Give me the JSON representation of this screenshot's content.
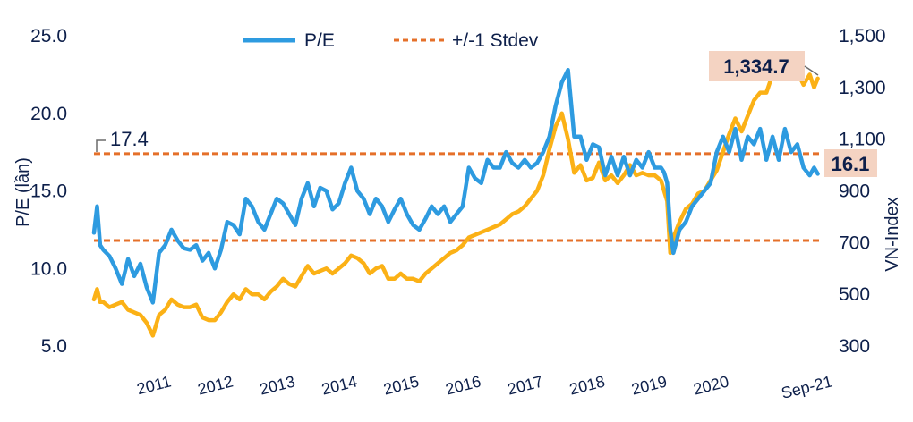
{
  "chart_data": {
    "type": "line",
    "title": "",
    "ylabel": "P/E (lần)",
    "y2label": "VN-Index",
    "ylim": [
      5,
      25
    ],
    "y2lim": [
      300,
      1500
    ],
    "yticks": [
      "5.0",
      "10.0",
      "15.0",
      "20.0",
      "25.0"
    ],
    "y2ticks": [
      "300",
      "500",
      "700",
      "900",
      "1,100",
      "1,300",
      "1,500"
    ],
    "xlim": [
      2010.0,
      2021.7
    ],
    "xtick_labels": [
      "2011",
      "2012",
      "2013",
      "2014",
      "2015",
      "2016",
      "2017",
      "2018",
      "2019",
      "2020",
      "Sep-21"
    ],
    "xtick_positions": [
      2011.0,
      2012.0,
      2013.0,
      2014.0,
      2015.0,
      2016.0,
      2017.0,
      2018.0,
      2019.0,
      2020.0,
      2021.67
    ],
    "legend": [
      "P/E",
      "+/-1 Stdev"
    ],
    "legend_position": "top",
    "reference_lines": [
      {
        "name": "+1 Stdev",
        "value": 17.4,
        "axis": "left"
      },
      {
        "name": "-1 Stdev",
        "value": 11.8,
        "axis": "left"
      }
    ],
    "annotations": {
      "upper_band_label": "17.4",
      "pe_last_label": "16.1",
      "vnindex_last_label": "1,334.7"
    },
    "colors": {
      "pe": "#2e9be0",
      "vnindex": "#fbb116",
      "stdev": "#e5702a",
      "text": "#0d1f4a",
      "callout_bg": "#f4d3c2"
    },
    "series": [
      {
        "name": "P/E",
        "axis": "left",
        "x": [
          2010.0,
          2010.05,
          2010.1,
          2010.15,
          2010.25,
          2010.35,
          2010.45,
          2010.55,
          2010.65,
          2010.75,
          2010.85,
          2010.95,
          2011.05,
          2011.15,
          2011.25,
          2011.35,
          2011.45,
          2011.55,
          2011.65,
          2011.75,
          2011.85,
          2011.95,
          2012.05,
          2012.15,
          2012.25,
          2012.35,
          2012.45,
          2012.55,
          2012.65,
          2012.75,
          2012.85,
          2012.95,
          2013.05,
          2013.15,
          2013.25,
          2013.35,
          2013.45,
          2013.55,
          2013.65,
          2013.75,
          2013.85,
          2013.95,
          2014.05,
          2014.15,
          2014.25,
          2014.35,
          2014.45,
          2014.55,
          2014.65,
          2014.75,
          2014.85,
          2014.95,
          2015.05,
          2015.15,
          2015.25,
          2015.35,
          2015.45,
          2015.55,
          2015.65,
          2015.75,
          2015.85,
          2015.95,
          2016.05,
          2016.15,
          2016.25,
          2016.35,
          2016.45,
          2016.55,
          2016.65,
          2016.75,
          2016.85,
          2016.95,
          2017.05,
          2017.15,
          2017.25,
          2017.35,
          2017.45,
          2017.55,
          2017.65,
          2017.75,
          2017.85,
          2017.95,
          2018.05,
          2018.15,
          2018.25,
          2018.35,
          2018.45,
          2018.55,
          2018.65,
          2018.75,
          2018.85,
          2018.95,
          2019.05,
          2019.15,
          2019.2,
          2019.25,
          2019.3,
          2019.35,
          2019.45,
          2019.55,
          2019.65,
          2019.75,
          2019.85,
          2019.95,
          2020.05,
          2020.15,
          2020.25,
          2020.35,
          2020.45,
          2020.55,
          2020.65,
          2020.75,
          2020.85,
          2020.95,
          2021.05,
          2021.15,
          2021.25,
          2021.35,
          2021.45,
          2021.55,
          2021.62,
          2021.68
        ],
        "values": [
          12.3,
          14.0,
          11.5,
          11.2,
          10.8,
          10.0,
          9.0,
          10.6,
          9.5,
          10.3,
          8.8,
          7.8,
          11.0,
          11.5,
          12.5,
          11.8,
          11.3,
          11.2,
          11.5,
          10.5,
          11.0,
          10.0,
          11.2,
          13.0,
          12.8,
          12.2,
          14.5,
          14.0,
          13.0,
          12.5,
          13.5,
          14.5,
          14.2,
          13.5,
          12.8,
          14.5,
          15.5,
          14.0,
          15.2,
          15.0,
          13.8,
          14.2,
          15.5,
          16.5,
          15.0,
          14.5,
          13.5,
          14.5,
          14.0,
          13.0,
          13.8,
          14.5,
          13.5,
          12.8,
          12.5,
          13.2,
          14.0,
          13.5,
          14.0,
          13.0,
          13.5,
          14.0,
          16.5,
          15.8,
          15.5,
          17.0,
          16.5,
          16.5,
          17.5,
          16.8,
          16.5,
          17.0,
          16.5,
          16.8,
          17.5,
          18.5,
          20.5,
          22.0,
          22.8,
          18.5,
          18.5,
          17.0,
          18.0,
          17.8,
          16.0,
          17.2,
          16.0,
          17.2,
          16.0,
          17.0,
          16.5,
          17.5,
          16.5,
          16.5,
          16.2,
          15.5,
          12.5,
          11.0,
          12.5,
          13.0,
          14.0,
          14.5,
          15.0,
          15.5,
          17.5,
          18.5,
          17.5,
          19.0,
          17.0,
          18.5,
          18.0,
          19.0,
          17.0,
          18.5,
          17.0,
          19.0,
          17.5,
          18.0,
          16.5,
          16.0,
          16.5,
          16.1
        ]
      },
      {
        "name": "VN-Index",
        "axis": "right",
        "x": [
          2010.0,
          2010.05,
          2010.1,
          2010.15,
          2010.25,
          2010.35,
          2010.45,
          2010.55,
          2010.65,
          2010.75,
          2010.85,
          2010.95,
          2011.05,
          2011.15,
          2011.25,
          2011.35,
          2011.45,
          2011.55,
          2011.65,
          2011.75,
          2011.85,
          2011.95,
          2012.05,
          2012.15,
          2012.25,
          2012.35,
          2012.45,
          2012.55,
          2012.65,
          2012.75,
          2012.85,
          2012.95,
          2013.05,
          2013.15,
          2013.25,
          2013.35,
          2013.45,
          2013.55,
          2013.65,
          2013.75,
          2013.85,
          2013.95,
          2014.05,
          2014.15,
          2014.25,
          2014.35,
          2014.45,
          2014.55,
          2014.65,
          2014.75,
          2014.85,
          2014.95,
          2015.05,
          2015.15,
          2015.25,
          2015.35,
          2015.45,
          2015.55,
          2015.65,
          2015.75,
          2015.85,
          2015.95,
          2016.05,
          2016.15,
          2016.25,
          2016.35,
          2016.45,
          2016.55,
          2016.65,
          2016.75,
          2016.85,
          2016.95,
          2017.05,
          2017.15,
          2017.25,
          2017.35,
          2017.45,
          2017.55,
          2017.65,
          2017.75,
          2017.85,
          2017.95,
          2018.05,
          2018.15,
          2018.25,
          2018.35,
          2018.45,
          2018.55,
          2018.65,
          2018.75,
          2018.85,
          2018.95,
          2019.05,
          2019.15,
          2019.2,
          2019.25,
          2019.3,
          2019.35,
          2019.45,
          2019.55,
          2019.65,
          2019.75,
          2019.85,
          2019.95,
          2020.05,
          2020.15,
          2020.25,
          2020.35,
          2020.45,
          2020.55,
          2020.65,
          2020.75,
          2020.85,
          2020.95,
          2021.05,
          2021.15,
          2021.25,
          2021.35,
          2021.45,
          2021.55,
          2021.62,
          2021.68
        ],
        "values": [
          480,
          520,
          470,
          470,
          450,
          460,
          470,
          440,
          430,
          420,
          390,
          340,
          420,
          440,
          480,
          460,
          450,
          450,
          460,
          410,
          400,
          400,
          430,
          470,
          500,
          480,
          520,
          500,
          500,
          480,
          510,
          530,
          560,
          540,
          530,
          570,
          610,
          580,
          590,
          600,
          580,
          600,
          620,
          650,
          640,
          620,
          580,
          600,
          610,
          560,
          560,
          580,
          560,
          560,
          550,
          580,
          600,
          620,
          640,
          660,
          670,
          690,
          720,
          730,
          740,
          750,
          760,
          770,
          790,
          810,
          820,
          840,
          870,
          900,
          960,
          1060,
          1150,
          1200,
          1100,
          970,
          1000,
          940,
          950,
          1010,
          940,
          960,
          930,
          960,
          1000,
          960,
          970,
          960,
          960,
          940,
          900,
          860,
          660,
          720,
          780,
          830,
          850,
          890,
          900,
          940,
          980,
          1050,
          1120,
          1180,
          1130,
          1190,
          1250,
          1280,
          1280,
          1350,
          1380,
          1420,
          1340,
          1360,
          1310,
          1350,
          1300,
          1334.7
        ]
      }
    ]
  }
}
